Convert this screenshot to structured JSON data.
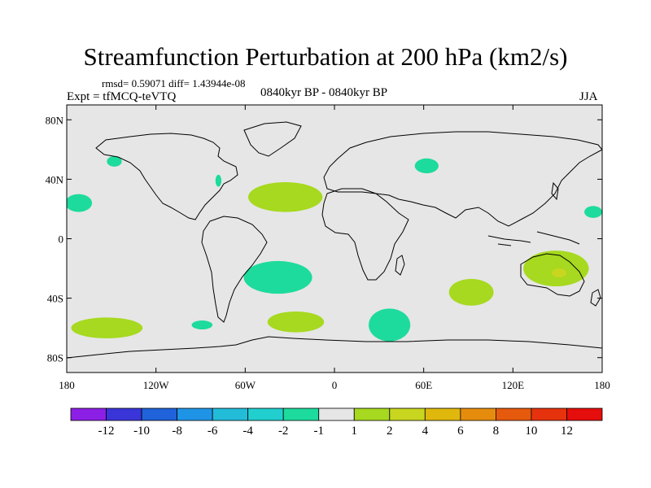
{
  "header": {
    "title": "Streamfunction Perturbation at 200 hPa (km2/s)",
    "stats": "rmsd= 0.59071 diff= 1.43944e-08",
    "experiment": "Expt = tfMCQ-teVTQ",
    "period": "0840kyr BP - 0840kyr BP",
    "season": "JJA"
  },
  "chart_data": {
    "type": "heatmap",
    "projection": "cylindrical-equidistant",
    "title": "Streamfunction Perturbation at 200 hPa (km2/s)",
    "x_ticks": [
      {
        "value": -180,
        "label": "180"
      },
      {
        "value": -120,
        "label": "120W"
      },
      {
        "value": -60,
        "label": "60W"
      },
      {
        "value": 0,
        "label": "0"
      },
      {
        "value": 60,
        "label": "60E"
      },
      {
        "value": 120,
        "label": "120E"
      },
      {
        "value": 180,
        "label": "180"
      }
    ],
    "y_ticks": [
      {
        "value": 80,
        "label": "80N"
      },
      {
        "value": 40,
        "label": "40N"
      },
      {
        "value": 0,
        "label": "0"
      },
      {
        "value": -40,
        "label": "40S"
      },
      {
        "value": -80,
        "label": "80S"
      }
    ],
    "xlim": [
      -180,
      180
    ],
    "ylim": [
      -90,
      90
    ],
    "colorbar": {
      "colors": [
        "#8c1fe6",
        "#3a35d9",
        "#1f62d9",
        "#1f94e6",
        "#22bcd9",
        "#21cfcf",
        "#1ddb9c",
        "#e6e6e6",
        "#a6d91f",
        "#c8d61f",
        "#e0b80d",
        "#e68c0d",
        "#e65a0d",
        "#e6330d",
        "#e60d0d"
      ],
      "labels": [
        "-12",
        "-10",
        "-8",
        "-6",
        "-4",
        "-2",
        "-1",
        "1",
        "2",
        "4",
        "6",
        "8",
        "10",
        "12"
      ]
    },
    "anomalies": [
      {
        "lon": -148,
        "lat": 52,
        "rlon": 5,
        "rlat": 3.5,
        "level": "-2 to -1"
      },
      {
        "lon": -172,
        "lat": 24,
        "rlon": 9,
        "rlat": 6,
        "level": "-2 to -1"
      },
      {
        "lon": -78,
        "lat": 39,
        "rlon": 2,
        "rlat": 4,
        "level": "-2 to -1"
      },
      {
        "lon": -33,
        "lat": 28,
        "rlon": 25,
        "rlat": 10,
        "level": "1 to 2"
      },
      {
        "lon": 62,
        "lat": 49,
        "rlon": 8,
        "rlat": 5,
        "level": "-2 to -1"
      },
      {
        "lon": 174,
        "lat": 18,
        "rlon": 6,
        "rlat": 4,
        "level": "-2 to -1"
      },
      {
        "lon": -38,
        "lat": -26,
        "rlon": 23,
        "rlat": 11,
        "level": "-2 to -1"
      },
      {
        "lon": 92,
        "lat": -36,
        "rlon": 15,
        "rlat": 9,
        "level": "1 to 2"
      },
      {
        "lon": 149,
        "lat": -20,
        "rlon": 22,
        "rlat": 12,
        "level": "1 to 2"
      },
      {
        "lon": 151,
        "lat": -23,
        "rlon": 5,
        "rlat": 3,
        "level": "2 to 4"
      },
      {
        "lon": -153,
        "lat": -60,
        "rlon": 24,
        "rlat": 7,
        "level": "1 to 2"
      },
      {
        "lon": -89,
        "lat": -58,
        "rlon": 7,
        "rlat": 3,
        "level": "-2 to -1"
      },
      {
        "lon": -26,
        "lat": -56,
        "rlon": 19,
        "rlat": 7,
        "level": "1 to 2"
      },
      {
        "lon": 37,
        "lat": -58,
        "rlon": 14,
        "rlat": 11,
        "level": "-2 to -1"
      }
    ]
  }
}
